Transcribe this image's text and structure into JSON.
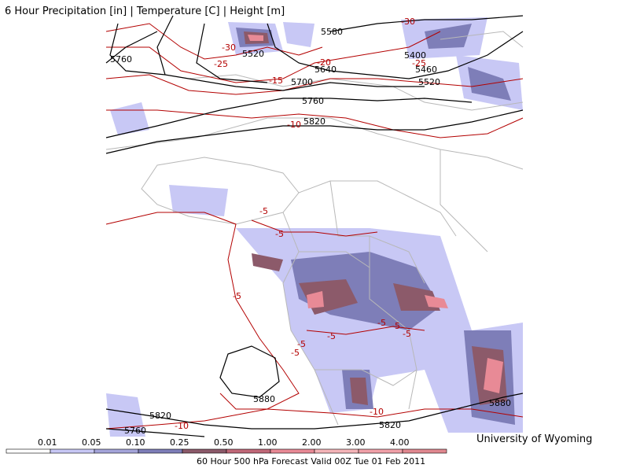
{
  "title": "6 Hour Precipitation [in] | Temperature [C] | Height [m]",
  "credit": "University of Wyoming",
  "valid_text": "60 Hour 500 hPa Forecast Valid 00Z Tue 01 Feb 2011",
  "colors": {
    "height_contour": "#000000",
    "temp_contour": "#b30000",
    "borders": "#b8b8b8",
    "precip": [
      "#ffffff",
      "#c8c8f5",
      "#a4a4d9",
      "#7e7eb8",
      "#8c5a6a",
      "#c06878",
      "#e88a96",
      "#f4b4b8"
    ]
  },
  "legend": {
    "ticks": [
      "0.01",
      "0.05",
      "0.10",
      "0.25",
      "0.50",
      "1.00",
      "2.00",
      "3.00",
      "4.00"
    ]
  },
  "height_labels": [
    "5760",
    "5580",
    "5520",
    "5400",
    "5460",
    "5520",
    "5640",
    "5700",
    "5760",
    "5820",
    "5880",
    "5880",
    "5820",
    "5820",
    "5760"
  ],
  "temp_labels": [
    "-30",
    "-30",
    "-25",
    "-25",
    "-20",
    "-15",
    "-10",
    "-5",
    "-5",
    "-5",
    "-5",
    "-5",
    "-5",
    "-5",
    "-5",
    "-5",
    "-10",
    "-10"
  ]
}
